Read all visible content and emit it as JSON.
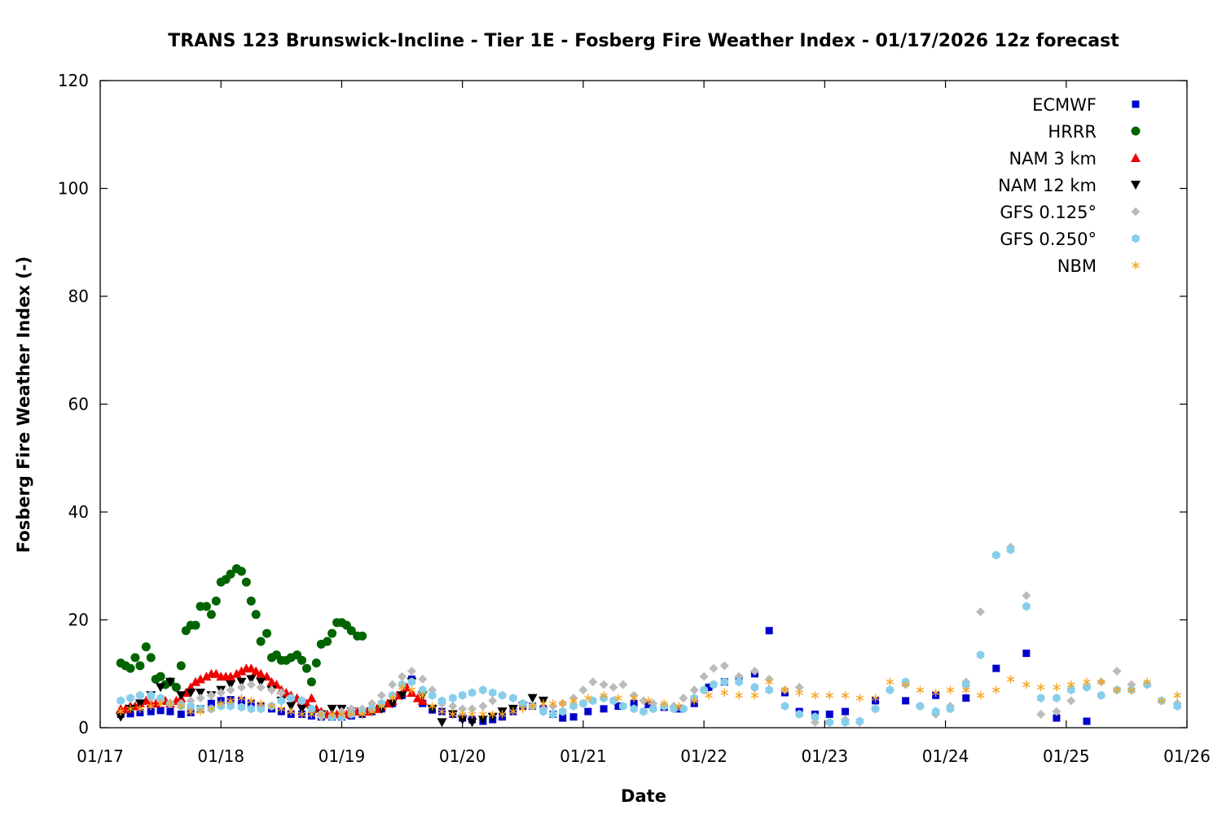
{
  "chart_data": {
    "type": "scatter",
    "title": "TRANS 123 Brunswick-Incline - Tier 1E - Fosberg Fire Weather Index - 01/17/2026 12z forecast",
    "xlabel": "Date",
    "ylabel": "Fosberg Fire Weather Index (-)",
    "xlim": [
      "01/17",
      "01/26"
    ],
    "ylim": [
      0,
      120
    ],
    "x_ticks": [
      "01/17",
      "01/18",
      "01/19",
      "01/20",
      "01/21",
      "01/22",
      "01/23",
      "01/24",
      "01/25",
      "01/26"
    ],
    "y_ticks": [
      0,
      20,
      40,
      60,
      80,
      100,
      120
    ],
    "grid": false,
    "legend_position": "top-right",
    "x_format": "day of January 2026, fractional (e.g. 17.5 = 01/17 12:00)",
    "series": [
      {
        "name": "ECMWF",
        "color": "#0000cc",
        "marker": "square",
        "x": [
          17.17,
          17.25,
          17.33,
          17.42,
          17.5,
          17.58,
          17.67,
          17.75,
          17.83,
          17.92,
          18.0,
          18.08,
          18.17,
          18.25,
          18.33,
          18.42,
          18.5,
          18.58,
          18.67,
          18.75,
          18.83,
          18.92,
          19.0,
          19.08,
          19.17,
          19.25,
          19.33,
          19.42,
          19.5,
          19.58,
          19.67,
          19.75,
          19.83,
          19.92,
          20.0,
          20.08,
          20.17,
          20.25,
          20.33,
          20.42,
          20.5,
          20.58,
          20.67,
          20.75,
          20.83,
          20.92,
          21.04,
          21.17,
          21.29,
          21.42,
          21.54,
          21.67,
          21.79,
          21.92,
          22.04,
          22.17,
          22.29,
          22.42,
          22.54,
          22.67,
          22.79,
          22.92,
          23.04,
          23.17,
          23.42,
          23.67,
          23.92,
          24.17,
          24.42,
          24.67,
          24.92,
          25.17
        ],
        "y": [
          2.5,
          2.6,
          2.8,
          3.0,
          3.2,
          3.0,
          2.5,
          2.8,
          3.5,
          4.5,
          5.0,
          5.2,
          5.0,
          4.5,
          4.0,
          3.5,
          3.0,
          2.5,
          2.5,
          2.2,
          2.0,
          2.0,
          2.0,
          2.2,
          2.5,
          3.0,
          3.5,
          4.5,
          6.0,
          9.0,
          4.5,
          3.3,
          3.0,
          2.5,
          1.8,
          1.5,
          1.2,
          1.5,
          2.0,
          3.0,
          4.0,
          4.0,
          3.5,
          2.5,
          1.8,
          2.0,
          3.0,
          3.5,
          4.0,
          4.5,
          4.3,
          3.8,
          3.5,
          4.5,
          7.5,
          8.5,
          9.0,
          10.0,
          18.0,
          6.5,
          3.0,
          2.5,
          2.5,
          3.0,
          5.0,
          5.0,
          6.0,
          5.5,
          11.0,
          13.8,
          1.8,
          1.2
        ]
      },
      {
        "name": "HRRR",
        "color": "#006400",
        "marker": "circle",
        "x": [
          17.17,
          17.21,
          17.25,
          17.29,
          17.33,
          17.38,
          17.42,
          17.46,
          17.5,
          17.54,
          17.58,
          17.63,
          17.67,
          17.71,
          17.75,
          17.79,
          17.83,
          17.88,
          17.92,
          17.96,
          18.0,
          18.04,
          18.08,
          18.13,
          18.17,
          18.21,
          18.25,
          18.29,
          18.33,
          18.38,
          18.42,
          18.46,
          18.5,
          18.54,
          18.58,
          18.63,
          18.67,
          18.71,
          18.75,
          18.79,
          18.83,
          18.88,
          18.92,
          18.96,
          19.0,
          19.04,
          19.08,
          19.13,
          19.17
        ],
        "y": [
          12.0,
          11.5,
          11.0,
          13.0,
          11.5,
          15.0,
          13.0,
          9.0,
          9.5,
          8.0,
          8.5,
          7.5,
          11.5,
          18.0,
          19.0,
          19.0,
          22.5,
          22.5,
          21.0,
          23.5,
          27.0,
          27.5,
          28.5,
          29.5,
          29.0,
          27.0,
          23.5,
          21.0,
          16.0,
          17.5,
          13.0,
          13.5,
          12.5,
          12.5,
          13.0,
          13.5,
          12.5,
          11.0,
          8.5,
          12.0,
          15.5,
          16.0,
          17.5,
          19.5,
          19.5,
          19.0,
          18.0,
          17.0,
          17.0
        ]
      },
      {
        "name": "NAM 3 km",
        "color": "#ee0000",
        "marker": "triangle-up",
        "x": [
          17.17,
          17.21,
          17.25,
          17.29,
          17.33,
          17.38,
          17.42,
          17.46,
          17.5,
          17.54,
          17.58,
          17.63,
          17.67,
          17.71,
          17.75,
          17.79,
          17.83,
          17.88,
          17.92,
          17.96,
          18.0,
          18.04,
          18.08,
          18.13,
          18.17,
          18.21,
          18.25,
          18.29,
          18.33,
          18.38,
          18.42,
          18.46,
          18.5,
          18.54,
          18.58,
          18.63,
          18.67,
          18.71,
          18.75,
          18.79,
          18.83,
          18.88,
          18.92,
          18.96,
          19.0,
          19.04,
          19.08,
          19.13,
          19.17,
          19.21,
          19.25,
          19.29,
          19.33,
          19.38,
          19.42,
          19.46,
          19.5,
          19.54,
          19.58,
          19.63,
          19.67
        ],
        "y": [
          3.5,
          3.5,
          4.0,
          4.0,
          4.5,
          5.0,
          4.5,
          4.5,
          5.0,
          5.0,
          4.5,
          5.0,
          5.5,
          6.5,
          7.5,
          8.5,
          9.0,
          9.5,
          10.0,
          10.0,
          9.5,
          9.5,
          9.5,
          10.0,
          10.5,
          11.0,
          11.0,
          10.5,
          10.0,
          9.5,
          8.5,
          8.0,
          7.0,
          6.5,
          6.0,
          5.5,
          5.0,
          4.5,
          5.5,
          3.5,
          3.0,
          2.5,
          2.5,
          2.5,
          2.5,
          2.5,
          3.0,
          3.0,
          3.0,
          3.0,
          3.5,
          3.5,
          4.0,
          4.5,
          5.0,
          6.0,
          6.5,
          7.5,
          6.5,
          5.5,
          5.0
        ]
      },
      {
        "name": "NAM 12 km",
        "color": "#000000",
        "marker": "triangle-down",
        "x": [
          17.17,
          17.25,
          17.33,
          17.42,
          17.5,
          17.58,
          17.67,
          17.75,
          17.83,
          17.92,
          18.0,
          18.08,
          18.17,
          18.25,
          18.33,
          18.42,
          18.5,
          18.58,
          18.67,
          18.75,
          18.83,
          18.92,
          19.0,
          19.08,
          19.17,
          19.25,
          19.33,
          19.42,
          19.5,
          19.58,
          19.67,
          19.75,
          19.83,
          19.92,
          20.0,
          20.08,
          20.17,
          20.25,
          20.33,
          20.42,
          20.5,
          20.58,
          20.67
        ],
        "y": [
          2.0,
          3.5,
          4.5,
          6.0,
          7.5,
          8.5,
          6.0,
          6.5,
          6.5,
          6.0,
          7.0,
          8.0,
          8.5,
          9.0,
          8.5,
          7.0,
          5.0,
          4.0,
          3.5,
          3.0,
          2.5,
          3.5,
          3.5,
          3.0,
          2.5,
          3.0,
          3.5,
          4.5,
          6.0,
          8.5,
          6.0,
          3.5,
          1.0,
          2.5,
          1.5,
          1.0,
          1.5,
          2.0,
          3.0,
          3.5,
          4.0,
          5.5,
          5.0
        ]
      },
      {
        "name": "GFS 0.125°",
        "color": "#bbbbbb",
        "marker": "diamond",
        "x": [
          17.17,
          17.25,
          17.33,
          17.42,
          17.5,
          17.58,
          17.67,
          17.75,
          17.83,
          17.92,
          18.0,
          18.08,
          18.17,
          18.25,
          18.33,
          18.42,
          18.5,
          18.58,
          18.67,
          18.75,
          18.83,
          18.92,
          19.0,
          19.08,
          19.17,
          19.25,
          19.33,
          19.42,
          19.5,
          19.58,
          19.67,
          19.75,
          19.83,
          19.92,
          20.0,
          20.08,
          20.17,
          20.25,
          20.33,
          20.42,
          20.5,
          20.58,
          20.67,
          20.75,
          20.83,
          20.92,
          21.0,
          21.08,
          21.17,
          21.25,
          21.33,
          21.42,
          21.5,
          21.58,
          21.67,
          21.75,
          21.83,
          21.92,
          22.0,
          22.08,
          22.17,
          22.29,
          22.42,
          22.54,
          22.67,
          22.79,
          22.92,
          23.04,
          23.17,
          23.29,
          23.42,
          23.54,
          23.67,
          23.79,
          23.92,
          24.04,
          24.17,
          24.29,
          24.42,
          24.54,
          24.67,
          24.79,
          24.92,
          25.04,
          25.17,
          25.29,
          25.42,
          25.54,
          25.67,
          25.79,
          25.92
        ],
        "y": [
          5.0,
          5.5,
          6.0,
          5.5,
          5.0,
          4.5,
          4.5,
          5.0,
          5.5,
          6.0,
          6.5,
          7.0,
          7.5,
          8.0,
          7.5,
          7.0,
          6.5,
          5.5,
          5.0,
          3.5,
          2.0,
          2.0,
          3.0,
          3.5,
          3.5,
          4.5,
          6.0,
          8.0,
          9.5,
          10.5,
          9.0,
          7.0,
          4.5,
          4.0,
          3.5,
          3.5,
          4.0,
          5.0,
          6.0,
          5.5,
          4.5,
          4.0,
          3.5,
          4.0,
          4.5,
          5.5,
          7.0,
          8.5,
          8.0,
          7.5,
          8.0,
          6.0,
          5.0,
          4.5,
          4.0,
          4.0,
          5.5,
          7.0,
          9.5,
          11.0,
          11.5,
          9.5,
          10.5,
          9.0,
          7.0,
          7.5,
          1.0,
          1.0,
          1.5,
          1.0,
          3.5,
          7.0,
          8.0,
          4.0,
          2.5,
          4.0,
          8.5,
          21.5,
          32.0,
          33.5,
          24.5,
          2.5,
          3.0,
          5.0,
          7.5,
          8.5,
          10.5,
          8.0,
          8.0,
          5.0,
          4.5
        ]
      },
      {
        "name": "GFS 0.250°",
        "color": "#87ceeb",
        "marker": "hexagon",
        "x": [
          17.17,
          17.25,
          17.33,
          17.42,
          17.5,
          17.58,
          17.67,
          17.75,
          17.83,
          17.92,
          18.0,
          18.08,
          18.17,
          18.25,
          18.33,
          18.42,
          18.5,
          18.58,
          18.67,
          18.75,
          18.83,
          18.92,
          19.0,
          19.08,
          19.17,
          19.25,
          19.33,
          19.42,
          19.5,
          19.58,
          19.67,
          19.75,
          19.83,
          19.92,
          20.0,
          20.08,
          20.17,
          20.25,
          20.33,
          20.42,
          20.5,
          20.58,
          20.67,
          20.75,
          20.83,
          20.92,
          21.0,
          21.08,
          21.17,
          21.25,
          21.33,
          21.42,
          21.5,
          21.58,
          21.67,
          21.75,
          21.83,
          21.92,
          22.0,
          22.08,
          22.17,
          22.29,
          22.42,
          22.54,
          22.67,
          22.79,
          22.92,
          23.04,
          23.17,
          23.29,
          23.42,
          23.54,
          23.67,
          23.79,
          23.92,
          24.04,
          24.17,
          24.29,
          24.42,
          24.54,
          24.67,
          24.79,
          24.92,
          25.04,
          25.17,
          25.29,
          25.42,
          25.54,
          25.67,
          25.79,
          25.92
        ],
        "y": [
          5.0,
          5.5,
          6.0,
          6.0,
          5.5,
          4.5,
          4.0,
          4.0,
          3.5,
          3.5,
          4.0,
          4.0,
          3.8,
          3.5,
          3.5,
          4.0,
          5.0,
          5.5,
          5.0,
          3.5,
          2.5,
          2.0,
          2.0,
          2.5,
          3.0,
          3.5,
          4.5,
          6.0,
          8.0,
          8.5,
          7.0,
          6.0,
          5.0,
          5.5,
          6.0,
          6.5,
          7.0,
          6.5,
          6.0,
          5.5,
          4.5,
          4.0,
          3.0,
          2.5,
          3.0,
          4.0,
          4.5,
          5.0,
          5.5,
          5.0,
          4.0,
          3.5,
          3.0,
          3.5,
          4.0,
          3.5,
          3.5,
          5.5,
          7.0,
          8.0,
          8.5,
          8.5,
          7.5,
          7.0,
          4.0,
          2.5,
          2.0,
          1.0,
          1.0,
          1.2,
          3.5,
          7.0,
          8.5,
          4.0,
          3.0,
          3.5,
          8.0,
          13.5,
          32.0,
          33.0,
          22.5,
          5.5,
          5.5,
          7.0,
          7.5,
          6.0,
          7.0,
          7.0,
          8.0,
          5.0,
          4.0
        ]
      },
      {
        "name": "NBM",
        "color": "#f5a623",
        "marker": "asterisk",
        "x": [
          17.17,
          17.25,
          17.33,
          17.42,
          17.5,
          17.58,
          17.67,
          17.75,
          17.83,
          17.92,
          18.0,
          18.08,
          18.17,
          18.25,
          18.33,
          18.42,
          18.5,
          18.58,
          18.67,
          18.75,
          18.83,
          18.92,
          19.0,
          19.08,
          19.17,
          19.25,
          19.33,
          19.42,
          19.5,
          19.58,
          19.67,
          19.75,
          19.83,
          19.92,
          20.0,
          20.08,
          20.17,
          20.25,
          20.33,
          20.42,
          20.5,
          20.58,
          20.67,
          20.75,
          20.83,
          20.92,
          21.04,
          21.17,
          21.29,
          21.42,
          21.54,
          21.67,
          21.79,
          21.92,
          22.04,
          22.17,
          22.29,
          22.42,
          22.54,
          22.67,
          22.79,
          22.92,
          23.04,
          23.17,
          23.29,
          23.42,
          23.54,
          23.67,
          23.79,
          23.92,
          24.04,
          24.17,
          24.29,
          24.42,
          24.54,
          24.67,
          24.79,
          24.92,
          25.04,
          25.17,
          25.29,
          25.42,
          25.54,
          25.67,
          25.79,
          25.92
        ],
        "y": [
          3.0,
          3.5,
          3.5,
          4.0,
          4.5,
          4.5,
          4.0,
          3.0,
          3.0,
          3.5,
          4.5,
          5.0,
          5.5,
          5.0,
          4.5,
          4.0,
          3.5,
          3.0,
          2.5,
          2.5,
          2.5,
          2.5,
          2.5,
          2.5,
          2.5,
          3.0,
          4.0,
          5.5,
          7.5,
          7.0,
          6.0,
          4.0,
          3.0,
          2.5,
          2.5,
          2.5,
          2.5,
          2.5,
          2.5,
          3.0,
          3.5,
          4.0,
          4.5,
          4.5,
          4.5,
          5.0,
          5.5,
          6.0,
          5.5,
          5.5,
          5.0,
          4.5,
          4.0,
          5.0,
          6.0,
          6.5,
          6.0,
          6.0,
          8.5,
          7.0,
          6.5,
          6.0,
          6.0,
          6.0,
          5.5,
          5.5,
          8.5,
          8.0,
          7.0,
          6.5,
          7.0,
          7.0,
          6.0,
          7.0,
          9.0,
          8.0,
          7.5,
          7.5,
          8.0,
          8.5,
          8.5,
          7.0,
          7.0,
          8.5,
          5.0,
          6.0
        ]
      }
    ]
  }
}
